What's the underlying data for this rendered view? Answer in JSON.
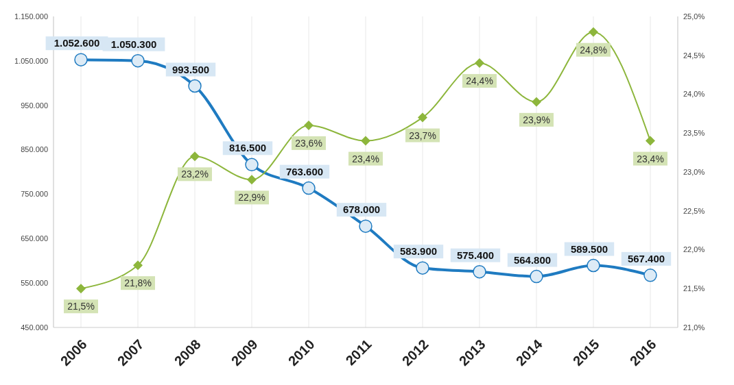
{
  "chart_data": {
    "type": "line",
    "categories": [
      "2006",
      "2007",
      "2008",
      "2009",
      "2010",
      "2011",
      "2012",
      "2013",
      "2014",
      "2015",
      "2016"
    ],
    "series": [
      {
        "color": "#1f7bc1",
        "marker": "circle",
        "values": [
          1052600,
          1050300,
          993500,
          816500,
          763600,
          678000,
          583900,
          575400,
          564800,
          589500,
          567400
        ],
        "value_labels": [
          "1.052.600",
          "1.050.300",
          "993.500",
          "816.500",
          "763.600",
          "678.000",
          "583.900",
          "575.400",
          "564.800",
          "589.500",
          "567.400"
        ]
      },
      {
        "color": "#8db63c",
        "marker": "diamond",
        "axis": "y2",
        "values": [
          21.5,
          21.8,
          23.2,
          22.9,
          23.6,
          23.4,
          23.7,
          24.4,
          23.9,
          24.8,
          23.4
        ],
        "value_labels": [
          "21,5%",
          "21,8%",
          "23,2%",
          "22,9%",
          "23,6%",
          "23,4%",
          "23,7%",
          "24,4%",
          "23,9%",
          "24,8%",
          "23,4%"
        ]
      }
    ],
    "ylim": [
      450000,
      1150000
    ],
    "yticks": [
      {
        "value": 450000,
        "label": "450.000"
      },
      {
        "value": 550000,
        "label": "550.000"
      },
      {
        "value": 650000,
        "label": "650.000"
      },
      {
        "value": 750000,
        "label": "750.000"
      },
      {
        "value": 850000,
        "label": "850.000"
      },
      {
        "value": 950000,
        "label": "950.000"
      },
      {
        "value": 1050000,
        "label": "1.050.000"
      },
      {
        "value": 1150000,
        "label": "1.150.000"
      }
    ],
    "y2lim": [
      21,
      25
    ],
    "y2ticks": [
      {
        "value": 21,
        "label": "21,0%"
      },
      {
        "value": 21.5,
        "label": "21,5%"
      },
      {
        "value": 22,
        "label": "22,0%"
      },
      {
        "value": 22.5,
        "label": "22,5%"
      },
      {
        "value": 23,
        "label": "23,0%"
      },
      {
        "value": 23.5,
        "label": "23,5%"
      },
      {
        "value": 24,
        "label": "24,0%"
      },
      {
        "value": 24.5,
        "label": "24,5%"
      },
      {
        "value": 25,
        "label": "25,0%"
      }
    ],
    "grid": "x"
  }
}
